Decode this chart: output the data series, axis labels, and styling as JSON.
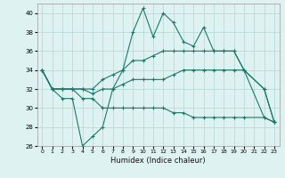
{
  "xlabel": "Humidex (Indice chaleur)",
  "ylabel": "",
  "background_color": "#dff2f2",
  "grid_color": "#b8dada",
  "line_color": "#1a7a6a",
  "xlim": [
    -0.5,
    23.5
  ],
  "ylim": [
    26,
    41
  ],
  "xticks": [
    0,
    1,
    2,
    3,
    4,
    5,
    6,
    7,
    8,
    9,
    10,
    11,
    12,
    13,
    14,
    15,
    16,
    17,
    18,
    19,
    20,
    21,
    22,
    23
  ],
  "yticks": [
    26,
    28,
    30,
    32,
    34,
    36,
    38,
    40
  ],
  "series": [
    {
      "x": [
        0,
        1,
        2,
        3,
        4,
        5,
        6,
        7,
        8,
        9,
        10,
        11,
        12,
        13,
        14,
        15,
        16,
        17,
        18,
        19,
        20,
        22,
        23
      ],
      "y": [
        34,
        32,
        31,
        31,
        26,
        27,
        28,
        32,
        34,
        38,
        40.5,
        37.5,
        40,
        39,
        37,
        36.5,
        38.5,
        36,
        36,
        36,
        34,
        29,
        28.5
      ]
    },
    {
      "x": [
        0,
        1,
        2,
        3,
        4,
        5,
        6,
        7,
        8,
        9,
        10,
        11,
        12,
        13,
        14,
        15,
        16,
        17,
        18,
        19,
        20,
        22,
        23
      ],
      "y": [
        34,
        32,
        32,
        32,
        32,
        32,
        33,
        33.5,
        34,
        35,
        35,
        35.5,
        36,
        36,
        36,
        36,
        36,
        36,
        36,
        36,
        34,
        32,
        28.5
      ]
    },
    {
      "x": [
        0,
        1,
        2,
        3,
        4,
        5,
        6,
        7,
        8,
        9,
        10,
        11,
        12,
        13,
        14,
        15,
        16,
        17,
        18,
        19,
        20,
        22,
        23
      ],
      "y": [
        34,
        32,
        32,
        32,
        32,
        31.5,
        32,
        32,
        32.5,
        33,
        33,
        33,
        33,
        33.5,
        34,
        34,
        34,
        34,
        34,
        34,
        34,
        32,
        28.5
      ]
    },
    {
      "x": [
        0,
        1,
        2,
        3,
        4,
        5,
        6,
        7,
        8,
        9,
        10,
        11,
        12,
        13,
        14,
        15,
        16,
        17,
        18,
        19,
        20,
        22,
        23
      ],
      "y": [
        34,
        32,
        32,
        32,
        31,
        31,
        30,
        30,
        30,
        30,
        30,
        30,
        30,
        29.5,
        29.5,
        29,
        29,
        29,
        29,
        29,
        29,
        29,
        28.5
      ]
    }
  ]
}
